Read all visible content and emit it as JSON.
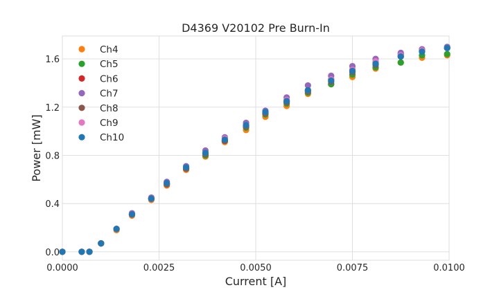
{
  "chart_data": {
    "type": "scatter",
    "title": "D4369 V20102 Pre Burn-In",
    "xlabel": "Current [A]",
    "ylabel": "Power [mW]",
    "xlim": [
      0.0,
      0.01
    ],
    "ylim": [
      -0.07,
      1.79
    ],
    "xticks": [
      0.0,
      0.0025,
      0.005,
      0.0075,
      0.01
    ],
    "xtick_labels": [
      "0.0000",
      "0.0025",
      "0.0050",
      "0.0075",
      "0.0100"
    ],
    "yticks": [
      0.0,
      0.4,
      0.8,
      1.2,
      1.6
    ],
    "ytick_labels": [
      "0.0",
      "0.4",
      "0.8",
      "1.2",
      "1.6"
    ],
    "grid": true,
    "legend_position": "top-left",
    "series": [
      {
        "name": "Ch4",
        "color": "#ff7f0e",
        "x": [
          0.0,
          0.0005,
          0.0007,
          0.001,
          0.0014,
          0.0018,
          0.0023,
          0.0027,
          0.0032,
          0.0037,
          0.0042,
          0.00475,
          0.00525,
          0.0058,
          0.00635,
          0.00695,
          0.0075,
          0.0081,
          0.00875,
          0.0093,
          0.00995
        ],
        "y": [
          0.0,
          0.0,
          0.0,
          0.07,
          0.18,
          0.3,
          0.43,
          0.55,
          0.68,
          0.79,
          0.91,
          1.01,
          1.12,
          1.21,
          1.31,
          1.39,
          1.45,
          1.52,
          1.57,
          1.61,
          1.63
        ]
      },
      {
        "name": "Ch5",
        "color": "#2ca02c",
        "x": [
          0.0,
          0.0005,
          0.0007,
          0.001,
          0.0014,
          0.0018,
          0.0023,
          0.0027,
          0.0032,
          0.0037,
          0.0042,
          0.00475,
          0.00525,
          0.0058,
          0.00635,
          0.00695,
          0.0075,
          0.0081,
          0.00875,
          0.0093,
          0.00995
        ],
        "y": [
          0.0,
          0.0,
          0.0,
          0.07,
          0.19,
          0.31,
          0.44,
          0.56,
          0.69,
          0.8,
          0.92,
          1.03,
          1.14,
          1.23,
          1.32,
          1.39,
          1.47,
          1.53,
          1.57,
          1.63,
          1.64
        ]
      },
      {
        "name": "Ch6",
        "color": "#d62728",
        "x": [
          0.0,
          0.0005,
          0.0007,
          0.001,
          0.0014,
          0.0018,
          0.0023,
          0.0027,
          0.0032,
          0.0037,
          0.0042,
          0.00475,
          0.00525,
          0.0058,
          0.00635,
          0.00695,
          0.0075,
          0.0081,
          0.00875,
          0.0093,
          0.00995
        ],
        "y": [
          0.0,
          0.0,
          0.0,
          0.07,
          0.19,
          0.31,
          0.44,
          0.56,
          0.69,
          0.81,
          0.92,
          1.04,
          1.15,
          1.25,
          1.34,
          1.43,
          1.51,
          1.57,
          1.64,
          1.67,
          1.69
        ]
      },
      {
        "name": "Ch7",
        "color": "#9467bd",
        "x": [
          0.0,
          0.0005,
          0.0007,
          0.001,
          0.0014,
          0.0018,
          0.0023,
          0.0027,
          0.0032,
          0.0037,
          0.0042,
          0.00475,
          0.00525,
          0.0058,
          0.00635,
          0.00695,
          0.0075,
          0.0081,
          0.00875,
          0.0093,
          0.00995
        ],
        "y": [
          0.0,
          0.0,
          0.0,
          0.07,
          0.19,
          0.32,
          0.45,
          0.58,
          0.71,
          0.84,
          0.95,
          1.07,
          1.17,
          1.28,
          1.38,
          1.46,
          1.54,
          1.6,
          1.65,
          1.68,
          1.7
        ]
      },
      {
        "name": "Ch8",
        "color": "#8c564b",
        "x": [
          0.0,
          0.0005,
          0.0007,
          0.001,
          0.0014,
          0.0018,
          0.0023,
          0.0027,
          0.0032,
          0.0037,
          0.0042,
          0.00475,
          0.00525,
          0.0058,
          0.00635,
          0.00695,
          0.0075,
          0.0081,
          0.00875,
          0.0093,
          0.00995
        ],
        "y": [
          0.0,
          0.0,
          0.0,
          0.07,
          0.19,
          0.31,
          0.44,
          0.56,
          0.69,
          0.81,
          0.92,
          1.04,
          1.15,
          1.24,
          1.33,
          1.41,
          1.49,
          1.55,
          1.62,
          1.67,
          1.69
        ]
      },
      {
        "name": "Ch9",
        "color": "#e377c2",
        "x": [
          0.0,
          0.0005,
          0.0007,
          0.001,
          0.0014,
          0.0018,
          0.0023,
          0.0027,
          0.0032,
          0.0037,
          0.0042,
          0.00475,
          0.00525,
          0.0058,
          0.00635,
          0.00695,
          0.0075,
          0.0081,
          0.00875,
          0.0093,
          0.00995
        ],
        "y": [
          0.0,
          0.0,
          0.0,
          0.07,
          0.19,
          0.31,
          0.44,
          0.57,
          0.7,
          0.82,
          0.94,
          1.05,
          1.16,
          1.26,
          1.34,
          1.43,
          1.51,
          1.58,
          1.63,
          1.67,
          1.69
        ]
      },
      {
        "name": "Ch10",
        "color": "#1f77b4",
        "x": [
          0.0,
          0.0005,
          0.0007,
          0.001,
          0.0014,
          0.0018,
          0.0023,
          0.0027,
          0.0032,
          0.0037,
          0.0042,
          0.00475,
          0.00525,
          0.0058,
          0.00635,
          0.00695,
          0.0075,
          0.0081,
          0.00875,
          0.0093,
          0.00995
        ],
        "y": [
          0.0,
          0.0,
          0.0,
          0.07,
          0.19,
          0.31,
          0.44,
          0.57,
          0.7,
          0.82,
          0.93,
          1.05,
          1.16,
          1.25,
          1.34,
          1.42,
          1.5,
          1.56,
          1.62,
          1.66,
          1.69
        ]
      }
    ]
  }
}
